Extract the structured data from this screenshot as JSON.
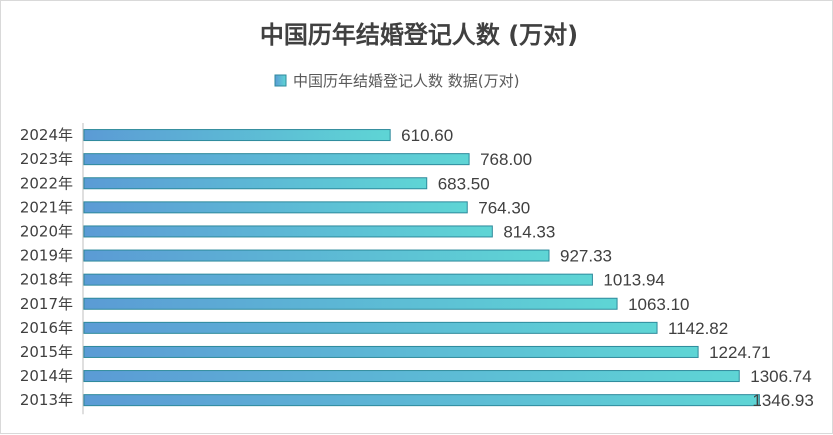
{
  "chart_data": {
    "type": "bar",
    "orientation": "horizontal",
    "title": "中国历年结婚登记人数 (万对)",
    "legend": {
      "position": "top",
      "entries": [
        "中国历年结婚登记人数 数据(万对)"
      ]
    },
    "categories": [
      "2024年",
      "2023年",
      "2022年",
      "2021年",
      "2020年",
      "2019年",
      "2018年",
      "2017年",
      "2016年",
      "2015年",
      "2014年",
      "2013年"
    ],
    "series": [
      {
        "name": "中国历年结婚登记人数 数据(万对)",
        "values": [
          610.6,
          768.0,
          683.5,
          764.3,
          814.33,
          927.33,
          1013.94,
          1063.1,
          1142.82,
          1224.71,
          1306.74,
          1346.93
        ],
        "labels": [
          "610.60",
          "768.00",
          "683.50",
          "764.30",
          "814.33",
          "927.33",
          "1013.94",
          "1063.10",
          "1142.82",
          "1224.71",
          "1306.74",
          "1346.93"
        ]
      }
    ],
    "xlim": [
      0,
      1400
    ],
    "grid": false,
    "colors": {
      "bar_start": "#5b9bd5",
      "bar_end": "#5ed5d5",
      "bar_stroke": "#2e8a9c",
      "axis": "#bfbfbf"
    }
  }
}
